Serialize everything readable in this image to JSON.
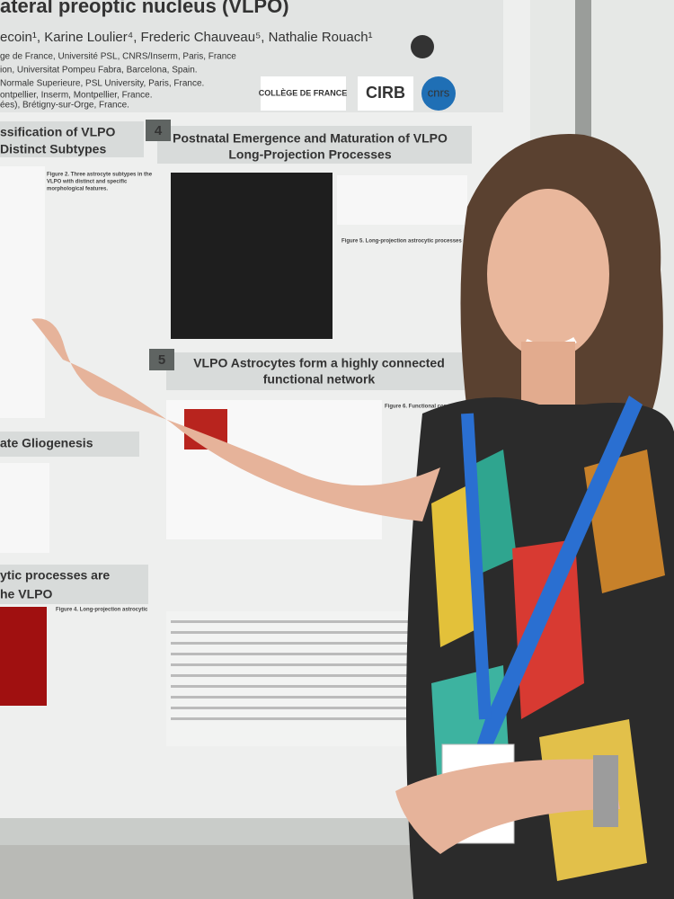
{
  "poster": {
    "title": "ateral preoptic nucleus (VLPO)",
    "authors": "ecoin¹, Karine Loulier⁴, Frederic Chauveau⁵, Nathalie Rouach¹",
    "affiliations": [
      "ge de France, Université PSL, CNRS/Inserm, Paris, France",
      "ion, Universitat Pompeu Fabra, Barcelona, Spain.",
      "Normale Superieure, PSL University, Paris, France.",
      "ontpellier, Inserm, Montpellier, France.",
      "ées), Brétigny-sur-Orge, France."
    ],
    "logos": [
      "COLLÈGE DE FRANCE",
      "CIRB",
      "cnrs"
    ],
    "left_sections": [
      [
        "ssification of VLPO",
        "Distinct Subtypes"
      ],
      [
        "ate Gliogenesis"
      ],
      [
        "ytic processes are",
        "he VLPO"
      ]
    ],
    "sections": [
      {
        "number": "4",
        "title": [
          "Postnatal Emergence and Maturation of VLPO",
          "Long-Projection Processes"
        ]
      },
      {
        "number": "5",
        "title": [
          "VLPO Astrocytes form a highly connected",
          "functional network"
        ]
      }
    ],
    "captions": [
      "Figure 2. Three astrocyte subtypes in the",
      "VLPO with distinct and specific",
      "morphological features.",
      "Figure 5. Long-projection astrocytic processes emerge",
      "Figure 6. Functional connectivity of",
      "Figure 4. Long-projection astrocytic"
    ]
  }
}
